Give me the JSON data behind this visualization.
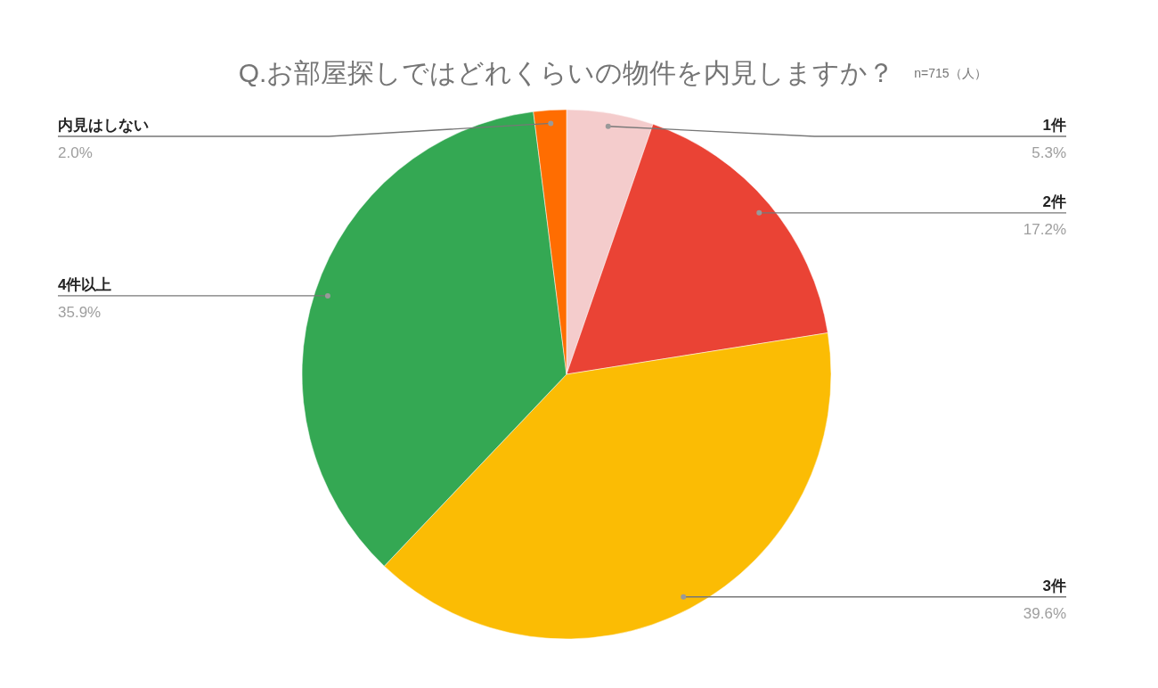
{
  "chart_data": {
    "type": "pie",
    "title": "Q.お部屋探しではどれくらいの物件を内見しますか？",
    "subtitle": "n=715（人）",
    "categories": [
      "1件",
      "2件",
      "3件",
      "4件以上",
      "内見はしない"
    ],
    "values": [
      5.3,
      17.2,
      39.6,
      35.9,
      2.0
    ],
    "colors": [
      "#f4cccc",
      "#ea4335",
      "#fbbc04",
      "#34a853",
      "#ff6d01"
    ],
    "value_labels": [
      "5.3%",
      "17.2%",
      "39.6%",
      "35.9%",
      "2.0%"
    ]
  }
}
